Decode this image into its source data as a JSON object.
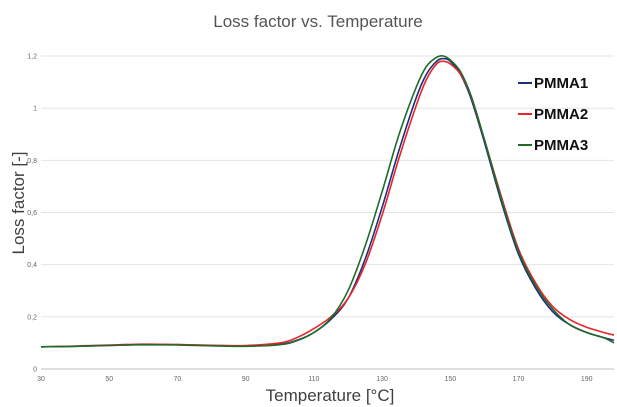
{
  "chart_data": {
    "type": "line",
    "title": "Loss factor vs. Temperature",
    "xlabel": "Temperature [°C]",
    "ylabel": "Loss factor [-]",
    "xlim": [
      30,
      198
    ],
    "ylim": [
      0,
      1.25
    ],
    "x_ticks": [
      30,
      50,
      70,
      90,
      110,
      130,
      150,
      170,
      190
    ],
    "x_tick_labels": [
      "30",
      "50",
      "70",
      "90",
      "110",
      "130",
      "150",
      "170",
      "190"
    ],
    "y_ticks": [
      0,
      0.2,
      0.4,
      0.6,
      0.8,
      1.0,
      1.2
    ],
    "y_tick_labels": [
      "0",
      "0,2",
      "0,4",
      "0,6",
      "0,8",
      "1",
      "1,2"
    ],
    "grid": "horizontal",
    "legend": "top-right",
    "series": [
      {
        "name": "PMMA1",
        "color": "#1f2f80",
        "x": [
          30,
          40,
          50,
          60,
          70,
          80,
          90,
          100,
          105,
          110,
          115,
          120,
          125,
          130,
          135,
          140,
          143,
          146,
          148,
          150,
          153,
          156,
          160,
          165,
          170,
          175,
          180,
          185,
          190,
          195,
          198
        ],
        "y": [
          0.085,
          0.087,
          0.091,
          0.094,
          0.093,
          0.09,
          0.088,
          0.095,
          0.11,
          0.14,
          0.19,
          0.27,
          0.42,
          0.62,
          0.84,
          1.04,
          1.13,
          1.18,
          1.19,
          1.18,
          1.13,
          1.04,
          0.87,
          0.64,
          0.44,
          0.31,
          0.22,
          0.17,
          0.14,
          0.12,
          0.11
        ]
      },
      {
        "name": "PMMA2",
        "color": "#e8242c",
        "x": [
          30,
          40,
          50,
          60,
          70,
          80,
          90,
          100,
          105,
          110,
          115,
          120,
          125,
          130,
          135,
          140,
          143,
          146,
          148,
          150,
          153,
          156,
          160,
          165,
          170,
          175,
          180,
          185,
          190,
          195,
          198
        ],
        "y": [
          0.085,
          0.088,
          0.092,
          0.095,
          0.094,
          0.091,
          0.09,
          0.1,
          0.12,
          0.155,
          0.2,
          0.27,
          0.4,
          0.59,
          0.81,
          1.01,
          1.11,
          1.17,
          1.18,
          1.17,
          1.13,
          1.05,
          0.88,
          0.66,
          0.46,
          0.33,
          0.24,
          0.19,
          0.16,
          0.14,
          0.13
        ]
      },
      {
        "name": "PMMA3",
        "color": "#1e6b2a",
        "x": [
          30,
          40,
          50,
          60,
          70,
          80,
          90,
          100,
          105,
          110,
          115,
          120,
          125,
          130,
          135,
          140,
          143,
          146,
          148,
          150,
          153,
          156,
          160,
          165,
          170,
          175,
          180,
          185,
          190,
          195,
          198
        ],
        "y": [
          0.085,
          0.087,
          0.09,
          0.093,
          0.092,
          0.089,
          0.087,
          0.093,
          0.108,
          0.14,
          0.195,
          0.3,
          0.47,
          0.68,
          0.9,
          1.08,
          1.16,
          1.195,
          1.2,
          1.185,
          1.14,
          1.05,
          0.88,
          0.65,
          0.45,
          0.32,
          0.23,
          0.17,
          0.14,
          0.12,
          0.1
        ]
      }
    ]
  }
}
